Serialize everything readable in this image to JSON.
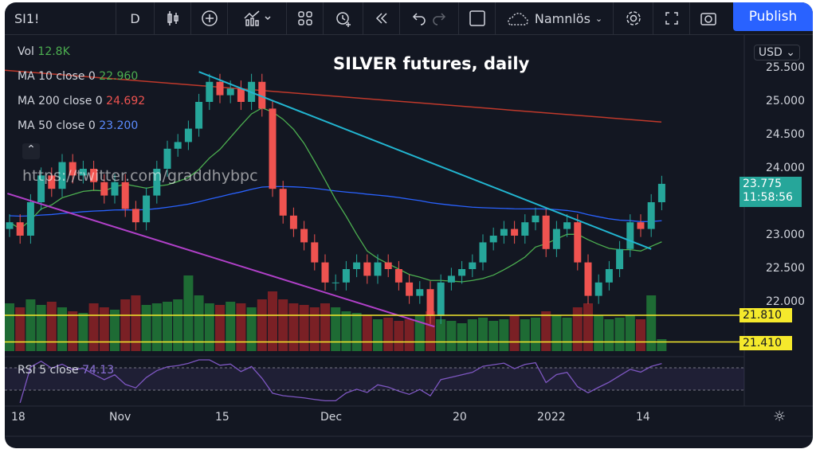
{
  "toolbar": {
    "symbol": "SI1!",
    "interval": "D",
    "layout_name": "Namnlös",
    "publish": "Publish"
  },
  "title": "SILVER futures, daily",
  "watermark": "https://twitter.com/graddhybpc",
  "legend": {
    "vol_label": "Vol",
    "vol_value": "12.8K",
    "ma10_label": "MA 10 close 0",
    "ma10_value": "22.960",
    "ma200_label": "MA 200 close 0",
    "ma200_value": "24.692",
    "ma50_label": "MA 50 close 0",
    "ma50_value": "23.200",
    "rsi_label": "RSI 5 close",
    "rsi_value": "74.13"
  },
  "price_axis": {
    "currency": "USD",
    "labels": [
      "25.500",
      "25.000",
      "24.500",
      "24.000",
      "23.000",
      "22.500",
      "22.000"
    ],
    "last_price": "23.775",
    "countdown": "11:58:56",
    "levels": [
      "21.810",
      "21.410"
    ]
  },
  "time_axis": [
    "18",
    "Nov",
    "15",
    "Dec",
    "20",
    "2022",
    "14"
  ],
  "colors": {
    "up": "#26a69a",
    "down": "#ef5350",
    "ma10": "#4caf50",
    "ma50": "#2962ff",
    "ma200": "#c0392b",
    "rsi": "#7e57c2",
    "trend1": "#22b5d0",
    "trend2": "#b040c8",
    "level": "#f5e92c"
  },
  "chart_data": {
    "type": "candlestick",
    "closes": [
      23.2,
      23.0,
      23.5,
      23.9,
      23.7,
      24.1,
      23.9,
      24.0,
      23.8,
      23.6,
      23.8,
      23.4,
      23.2,
      23.6,
      24.0,
      24.3,
      24.4,
      24.6,
      25.0,
      25.3,
      25.1,
      25.2,
      25.0,
      25.3,
      24.9,
      23.7,
      23.3,
      23.1,
      22.9,
      22.6,
      22.3,
      22.3,
      22.5,
      22.6,
      22.4,
      22.6,
      22.5,
      22.3,
      22.1,
      22.2,
      21.8,
      22.3,
      22.4,
      22.5,
      22.6,
      22.9,
      23.0,
      23.1,
      23.0,
      23.2,
      23.3,
      22.8,
      23.1,
      23.2,
      22.6,
      22.1,
      22.3,
      22.5,
      22.8,
      23.2,
      23.1,
      23.5,
      23.775
    ],
    "volume": [
      60,
      55,
      65,
      58,
      62,
      55,
      50,
      48,
      60,
      55,
      52,
      65,
      70,
      58,
      60,
      62,
      65,
      95,
      70,
      60,
      58,
      62,
      60,
      55,
      65,
      75,
      65,
      60,
      58,
      55,
      60,
      55,
      50,
      48,
      45,
      40,
      42,
      38,
      40,
      45,
      50,
      40,
      38,
      35,
      40,
      42,
      38,
      40,
      45,
      40,
      42,
      50,
      45,
      42,
      55,
      60,
      45,
      40,
      42,
      45,
      40,
      70,
      15
    ],
    "ma200": [
      25.45,
      24.7
    ],
    "trendlines": [
      {
        "from": [
          18,
          25.45
        ],
        "to": [
          61,
          22.8
        ]
      },
      {
        "from": [
          -0.2,
          23.63
        ],
        "to": [
          40.4,
          21.64
        ]
      }
    ],
    "levels": [
      21.81,
      21.41
    ],
    "ylim": [
      21.3,
      25.7
    ]
  }
}
